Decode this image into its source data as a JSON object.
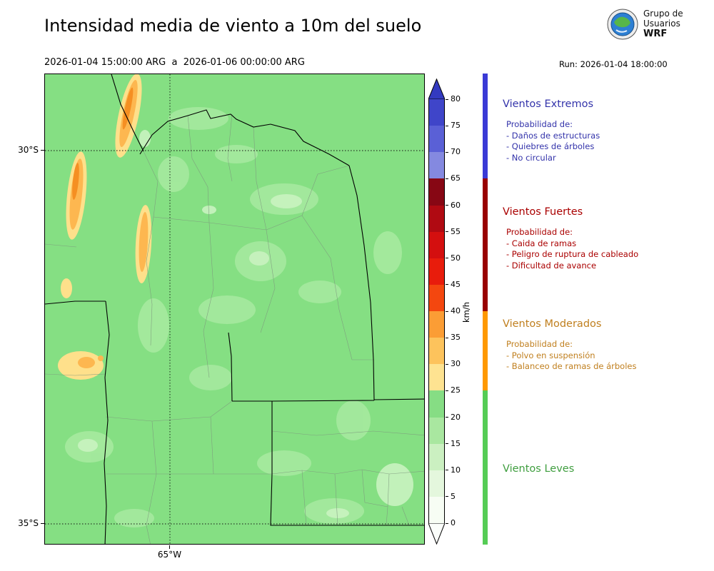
{
  "header": {
    "title": "Intensidad media de viento a 10m del suelo",
    "subtitle": "2026-01-04 15:00:00 ARG  a  2026-01-06 00:00:00 ARG",
    "run_label": "Run: 2026-01-04 18:00:00",
    "logo": {
      "line1": "Grupo de",
      "line2": "Usuarios",
      "line3": "WRF"
    }
  },
  "map": {
    "yticks": [
      "30°S",
      "35°S"
    ],
    "xticks": [
      "65°W"
    ],
    "base_color": "#85df83"
  },
  "colorbar": {
    "unit": "km/h",
    "ticks": [
      0,
      5,
      10,
      15,
      20,
      25,
      30,
      35,
      40,
      45,
      50,
      55,
      60,
      65,
      70,
      75,
      80
    ],
    "segment_colors": [
      "#f7fdf4",
      "#e4f7dd",
      "#cbf0c1",
      "#a9e7a0",
      "#86dd84",
      "#fee391",
      "#fdc35c",
      "#fb9d35",
      "#f4470f",
      "#e81c0c",
      "#d40f0f",
      "#b00a12",
      "#870714",
      "#8489e0",
      "#5a60d6",
      "#3f45c9"
    ],
    "over_color": "#333ac0",
    "under_color": "#fbfefb"
  },
  "legend": {
    "sections": [
      {
        "title": "Vientos Extremos",
        "text_color": "#3333aa",
        "bar_color": "#3a3ad6",
        "lines": [
          "Probabilidad de:",
          "- Daños de estructuras",
          "- Quiebres de árboles",
          "- No circular"
        ]
      },
      {
        "title": "Vientos Fuertes",
        "text_color": "#aa0000",
        "bar_color": "#990000",
        "lines": [
          "Probabilidad de:",
          "- Caida de ramas",
          "- Peligro de ruptura de cableado",
          "- Dificultad de avance"
        ]
      },
      {
        "title": "Vientos Moderados",
        "text_color": "#c07f1e",
        "bar_color": "#ff9900",
        "lines": [
          "Probabilidad de:",
          "- Polvo en suspensión",
          "- Balanceo de ramas de árboles"
        ]
      },
      {
        "title": "Vientos Leves",
        "text_color": "#3f9e3f",
        "bar_color": "#55cc55",
        "lines": []
      }
    ]
  }
}
